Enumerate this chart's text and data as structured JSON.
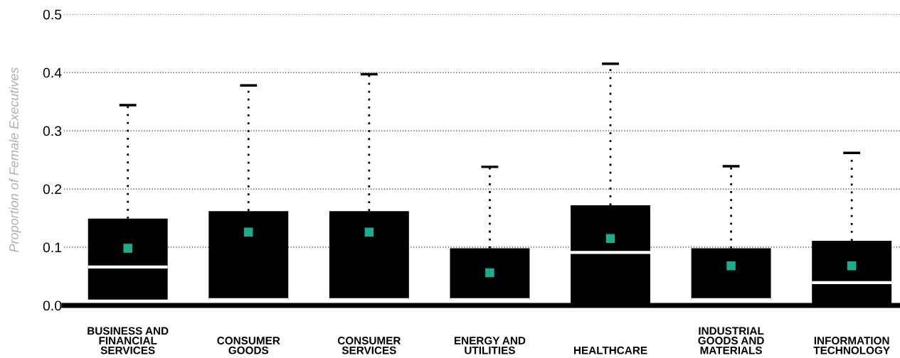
{
  "chart_data": {
    "type": "box",
    "ylabel": "Proportion of Female Executives",
    "categories": [
      "BUSINESS AND\nFINANCIAL\nSERVICES",
      "CONSUMER\nGOODS",
      "CONSUMER\nSERVICES",
      "ENERGY AND\nUTILITIES",
      "HEALTHCARE",
      "INDUSTRIAL\nGOODS AND\nMATERIALS",
      "INFORMATION\nTECHNOLOGY"
    ],
    "boxes": [
      {
        "low": 0.01,
        "q1": 0.01,
        "median": 0.066,
        "q3": 0.149,
        "high": 0.344,
        "mean": 0.098
      },
      {
        "low": 0.01,
        "q1": 0.01,
        "median": 0.01,
        "q3": 0.162,
        "high": 0.378,
        "mean": 0.126
      },
      {
        "low": 0.01,
        "q1": 0.01,
        "median": 0.01,
        "q3": 0.162,
        "high": 0.397,
        "mean": 0.126
      },
      {
        "low": 0.01,
        "q1": 0.01,
        "median": 0.01,
        "q3": 0.098,
        "high": 0.238,
        "mean": 0.056
      },
      {
        "low": 0.0,
        "q1": 0.0,
        "median": 0.091,
        "q3": 0.172,
        "high": 0.415,
        "mean": 0.115
      },
      {
        "low": 0.01,
        "q1": 0.01,
        "median": 0.01,
        "q3": 0.098,
        "high": 0.239,
        "mean": 0.068
      },
      {
        "low": 0.0,
        "q1": 0.0,
        "median": 0.039,
        "q3": 0.111,
        "high": 0.262,
        "mean": 0.068
      }
    ],
    "color": "#000000",
    "ylim": [
      0,
      0.5
    ],
    "yticks": [
      {
        "value": 0,
        "label": "0.0"
      },
      0.1,
      0.2,
      0.3,
      0.4,
      0.5
    ],
    "grid": "y",
    "legend": false
  }
}
